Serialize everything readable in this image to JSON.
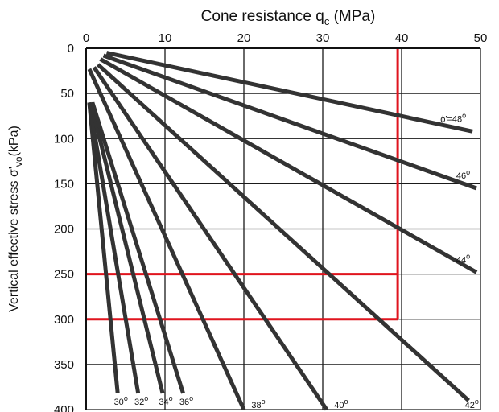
{
  "chart_data": {
    "type": "line",
    "title_main": "Cone resistance q",
    "title_sub": "c",
    "title_unit": " (MPa)",
    "ylabel_main": "Vertical effective  stress σ'",
    "ylabel_sub": "vo",
    "ylabel_unit": "(kPa)",
    "xlim": [
      0,
      50
    ],
    "ylim": [
      0,
      400
    ],
    "y_inverted": true,
    "x_axis_position": "top",
    "grid": true,
    "x_ticks": [
      "0",
      "10",
      "20",
      "30",
      "40",
      "50"
    ],
    "y_ticks": [
      "0",
      "50",
      "100",
      "150",
      "200",
      "250",
      "300",
      "350",
      "400"
    ],
    "series": [
      {
        "name": "30°",
        "label_text": "30",
        "x": [
          0.4,
          4.0
        ],
        "y": [
          60,
          382
        ]
      },
      {
        "name": "32°",
        "label_text": "32",
        "x": [
          0.4,
          6.6
        ],
        "y": [
          60,
          382
        ]
      },
      {
        "name": "34°",
        "label_text": "34",
        "x": [
          0.6,
          9.7
        ],
        "y": [
          60,
          382
        ]
      },
      {
        "name": "36°",
        "label_text": "36",
        "x": [
          0.8,
          12.3
        ],
        "y": [
          60,
          382
        ]
      },
      {
        "name": "38°",
        "label_text": "38",
        "x": [
          0.4,
          20.0
        ],
        "y": [
          23,
          400
        ]
      },
      {
        "name": "40°",
        "label_text": "40",
        "x": [
          1.0,
          30.5
        ],
        "y": [
          21,
          400
        ]
      },
      {
        "name": "42°",
        "label_text": "42",
        "x": [
          1.5,
          48.5
        ],
        "y": [
          18,
          390
        ]
      },
      {
        "name": "44°",
        "label_text": "44",
        "x": [
          1.8,
          49.5
        ],
        "y": [
          12,
          248
        ]
      },
      {
        "name": "46°",
        "label_text": "46",
        "x": [
          2.2,
          49.5
        ],
        "y": [
          8,
          155
        ]
      },
      {
        "name": "ϕ'=48°",
        "label_text": "ϕ'=48",
        "x": [
          2.6,
          49.0
        ],
        "y": [
          5,
          92
        ]
      }
    ],
    "annotation_lines": [
      {
        "x": [
          39.5,
          39.5
        ],
        "y": [
          0,
          300
        ],
        "color": "#e0141e"
      },
      {
        "x": [
          0,
          39.5
        ],
        "y": [
          250,
          250
        ],
        "color": "#e0141e"
      },
      {
        "x": [
          0,
          39.5
        ],
        "y": [
          300,
          300
        ],
        "color": "#e0141e"
      }
    ],
    "colors": {
      "lines": "#333333",
      "annotation": "#e0141e",
      "grid": "#1a1a1a"
    }
  }
}
